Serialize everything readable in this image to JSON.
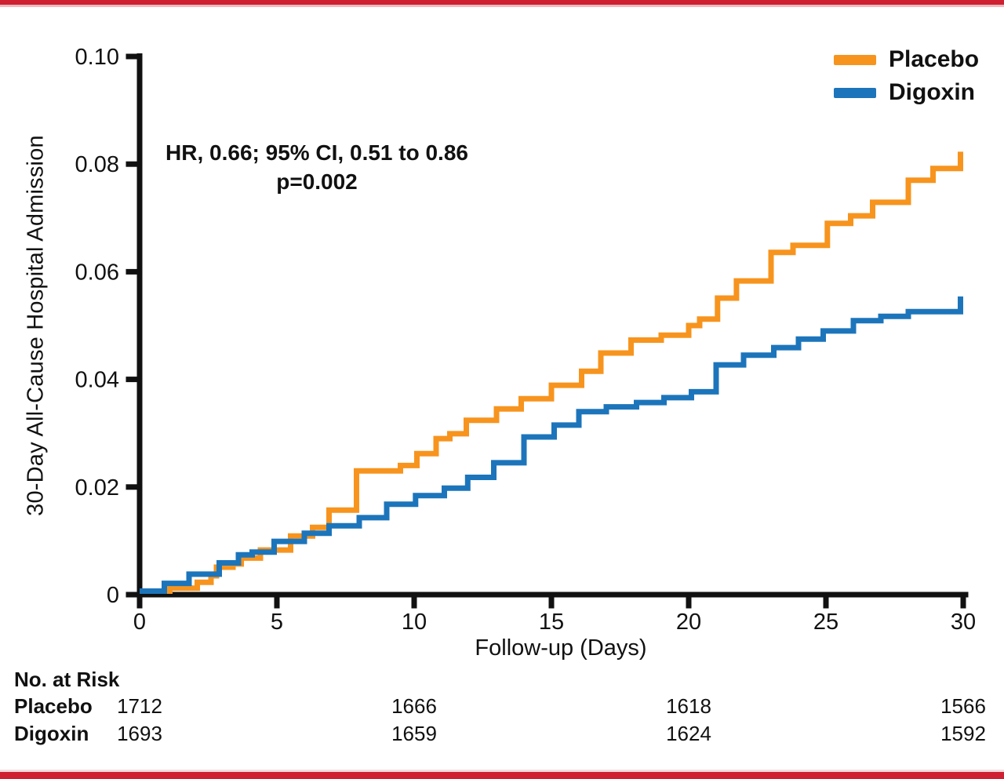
{
  "accent_bars": {
    "color": "#ce2030",
    "top_edge_color": "#efb9be",
    "bottom_edge_color": "#f3dcde"
  },
  "chart_data": {
    "type": "line",
    "subtype": "kaplan-meier-step",
    "title": "",
    "xlabel": "Follow-up (Days)",
    "ylabel": "30-Day All-Cause Hospital Admission",
    "xlim": [
      0,
      30
    ],
    "ylim": [
      0,
      0.1
    ],
    "grid": false,
    "legend_position": "top-right",
    "axis_color": "#111111",
    "xticks": [
      {
        "value": 0,
        "label": "0"
      },
      {
        "value": 5,
        "label": "5"
      },
      {
        "value": 10,
        "label": "10"
      },
      {
        "value": 15,
        "label": "15"
      },
      {
        "value": 20,
        "label": "20"
      },
      {
        "value": 25,
        "label": "25"
      },
      {
        "value": 30,
        "label": "30"
      }
    ],
    "yticks": [
      {
        "value": 0,
        "label": "0"
      },
      {
        "value": 0.02,
        "label": "0.02"
      },
      {
        "value": 0.04,
        "label": "0.04"
      },
      {
        "value": 0.06,
        "label": "0.06"
      },
      {
        "value": 0.08,
        "label": "0.08"
      },
      {
        "value": 0.1,
        "label": "0.10"
      }
    ],
    "annotation": {
      "line1": "HR, 0.66; 95% CI, 0.51 to 0.86",
      "line2": "p=0.002"
    },
    "series": [
      {
        "name": "Placebo",
        "color": "#f7941e",
        "steps": [
          [
            0,
            0
          ],
          [
            1.1,
            0.0012
          ],
          [
            2.1,
            0.0023
          ],
          [
            2.6,
            0.0035
          ],
          [
            2.8,
            0.0051
          ],
          [
            3.4,
            0.0057
          ],
          [
            3.7,
            0.0068
          ],
          [
            4.4,
            0.0083
          ],
          [
            5.5,
            0.0109
          ],
          [
            6.3,
            0.0125
          ],
          [
            6.9,
            0.0157
          ],
          [
            7.9,
            0.023
          ],
          [
            9.5,
            0.024
          ],
          [
            10.1,
            0.0262
          ],
          [
            10.8,
            0.029
          ],
          [
            11.3,
            0.0299
          ],
          [
            11.9,
            0.0324
          ],
          [
            13.0,
            0.0345
          ],
          [
            13.9,
            0.0364
          ],
          [
            15.0,
            0.0389
          ],
          [
            16.1,
            0.0415
          ],
          [
            16.8,
            0.0449
          ],
          [
            17.9,
            0.0473
          ],
          [
            19.0,
            0.0482
          ],
          [
            20.0,
            0.05
          ],
          [
            20.4,
            0.0512
          ],
          [
            21.05,
            0.0551
          ],
          [
            21.74,
            0.0583
          ],
          [
            23.0,
            0.0636
          ],
          [
            23.8,
            0.0649
          ],
          [
            25.05,
            0.069
          ],
          [
            25.9,
            0.0704
          ],
          [
            26.7,
            0.0729
          ],
          [
            28.0,
            0.077
          ],
          [
            28.9,
            0.0792
          ],
          [
            29.9,
            0.0818
          ]
        ]
      },
      {
        "name": "Digoxin",
        "color": "#1c75bb",
        "steps": [
          [
            0,
            0
          ],
          [
            0.9,
            0.0021
          ],
          [
            1.8,
            0.0038
          ],
          [
            2.9,
            0.0059
          ],
          [
            3.6,
            0.0074
          ],
          [
            4.1,
            0.0079
          ],
          [
            4.9,
            0.0099
          ],
          [
            6.0,
            0.0114
          ],
          [
            6.9,
            0.0128
          ],
          [
            8.0,
            0.0143
          ],
          [
            9.0,
            0.0168
          ],
          [
            10.05,
            0.0184
          ],
          [
            11.1,
            0.0198
          ],
          [
            11.95,
            0.0218
          ],
          [
            12.9,
            0.0245
          ],
          [
            14.0,
            0.0293
          ],
          [
            15.1,
            0.0315
          ],
          [
            16.0,
            0.034
          ],
          [
            17.0,
            0.0349
          ],
          [
            18.1,
            0.0357
          ],
          [
            19.1,
            0.0366
          ],
          [
            20.1,
            0.0377
          ],
          [
            21.0,
            0.0427
          ],
          [
            22.0,
            0.0445
          ],
          [
            23.1,
            0.0459
          ],
          [
            24.0,
            0.0475
          ],
          [
            24.9,
            0.049
          ],
          [
            26.0,
            0.0509
          ],
          [
            27.0,
            0.0517
          ],
          [
            28.0,
            0.0526
          ],
          [
            29.9,
            0.0549
          ]
        ]
      }
    ]
  },
  "legend": {
    "items": [
      {
        "label": "Placebo",
        "color": "#f7941e"
      },
      {
        "label": "Digoxin",
        "color": "#1c75bb"
      }
    ]
  },
  "risk_table": {
    "title": "No. at Risk",
    "timepoints": [
      0,
      10,
      20,
      30
    ],
    "rows": [
      {
        "label": "Placebo",
        "values": [
          "1712",
          "1666",
          "1618",
          "1566"
        ]
      },
      {
        "label": "Digoxin",
        "values": [
          "1693",
          "1659",
          "1624",
          "1592"
        ]
      }
    ]
  }
}
